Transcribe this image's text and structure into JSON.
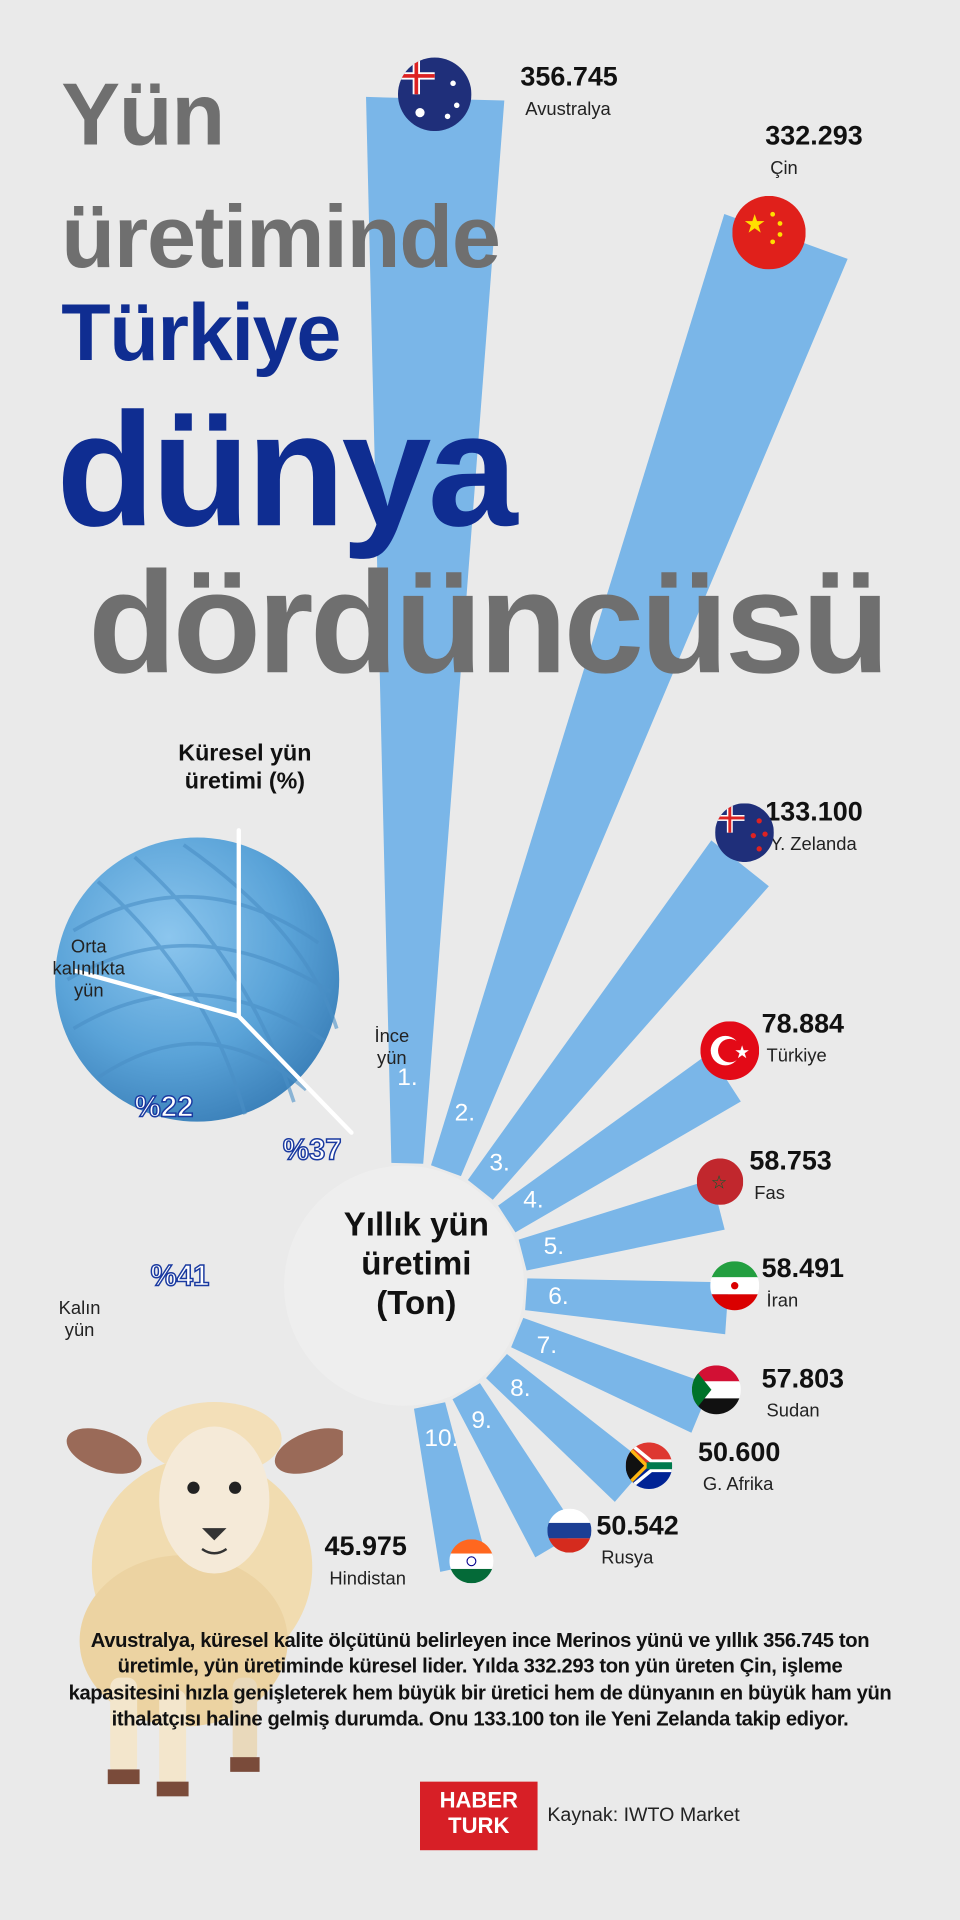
{
  "title": {
    "line1": "Yün",
    "line2": "üretiminde",
    "line3": "Türkiye",
    "line4": "dünya",
    "line5": "dördüncüsü"
  },
  "colors": {
    "bar": "#7ab6e8",
    "title_gray": "#6f6f6f",
    "title_navy": "#0f2d91",
    "logo": "#d71f26",
    "background": "#eaeaea"
  },
  "chart_data": [
    {
      "type": "bar",
      "layout": "radial",
      "title": "Yıllık yün üretimi (Ton)",
      "categories": [
        "Avustralya",
        "Çin",
        "Y. Zelanda",
        "Türkiye",
        "Fas",
        "İran",
        "Sudan",
        "G. Afrika",
        "Rusya",
        "Hindistan"
      ],
      "ranks": [
        "1.",
        "2.",
        "3.",
        "4.",
        "5.",
        "6.",
        "7.",
        "8.",
        "9.",
        "10."
      ],
      "values": [
        356745,
        332293,
        133100,
        78884,
        58753,
        58491,
        57803,
        50600,
        50542,
        45975
      ],
      "value_labels": [
        "356.745",
        "332.293",
        "133.100",
        "78.884",
        "58.753",
        "58.491",
        "57.803",
        "50.600",
        "50.542",
        "45.975"
      ],
      "flags": [
        "australia-flag",
        "china-flag",
        "new-zealand-flag",
        "turkey-flag",
        "morocco-flag",
        "iran-flag",
        "sudan-flag",
        "south-africa-flag",
        "russia-flag",
        "india-flag"
      ]
    },
    {
      "type": "pie",
      "title": "Küresel yün üretimi (%)",
      "categories": [
        "İnce yün",
        "Kalın yün",
        "Orta kalınlıkta yün"
      ],
      "values": [
        37,
        41,
        22
      ],
      "value_labels": [
        "%37",
        "%41",
        "%22"
      ]
    }
  ],
  "pie_labels": {
    "fine": [
      "İnce",
      "yün"
    ],
    "thick": [
      "Kalın",
      "yün"
    ],
    "medium": [
      "Orta",
      "kalınlıkta",
      "yün"
    ]
  },
  "footer": {
    "text": "Avustralya, küresel kalite ölçütünü belirleyen ince Merinos yünü ve yıllık 356.745 ton üretimle, yün üretiminde küresel lider. Yılda 332.293 ton yün üreten Çin, işleme kapasitesini hızla genişleterek hem büyük bir üretici hem de dünyanın en büyük ham yün ithalatçısı haline gelmiş durumda. Onu 133.100 ton ile Yeni Zelanda takip ediyor.",
    "logo_line1": "HABER",
    "logo_line2": "TURK",
    "source": "Kaynak: IWTO Market"
  },
  "center_title": {
    "line1": "Yıllık yün",
    "line2": "üretimi",
    "line3": "(Ton)"
  }
}
